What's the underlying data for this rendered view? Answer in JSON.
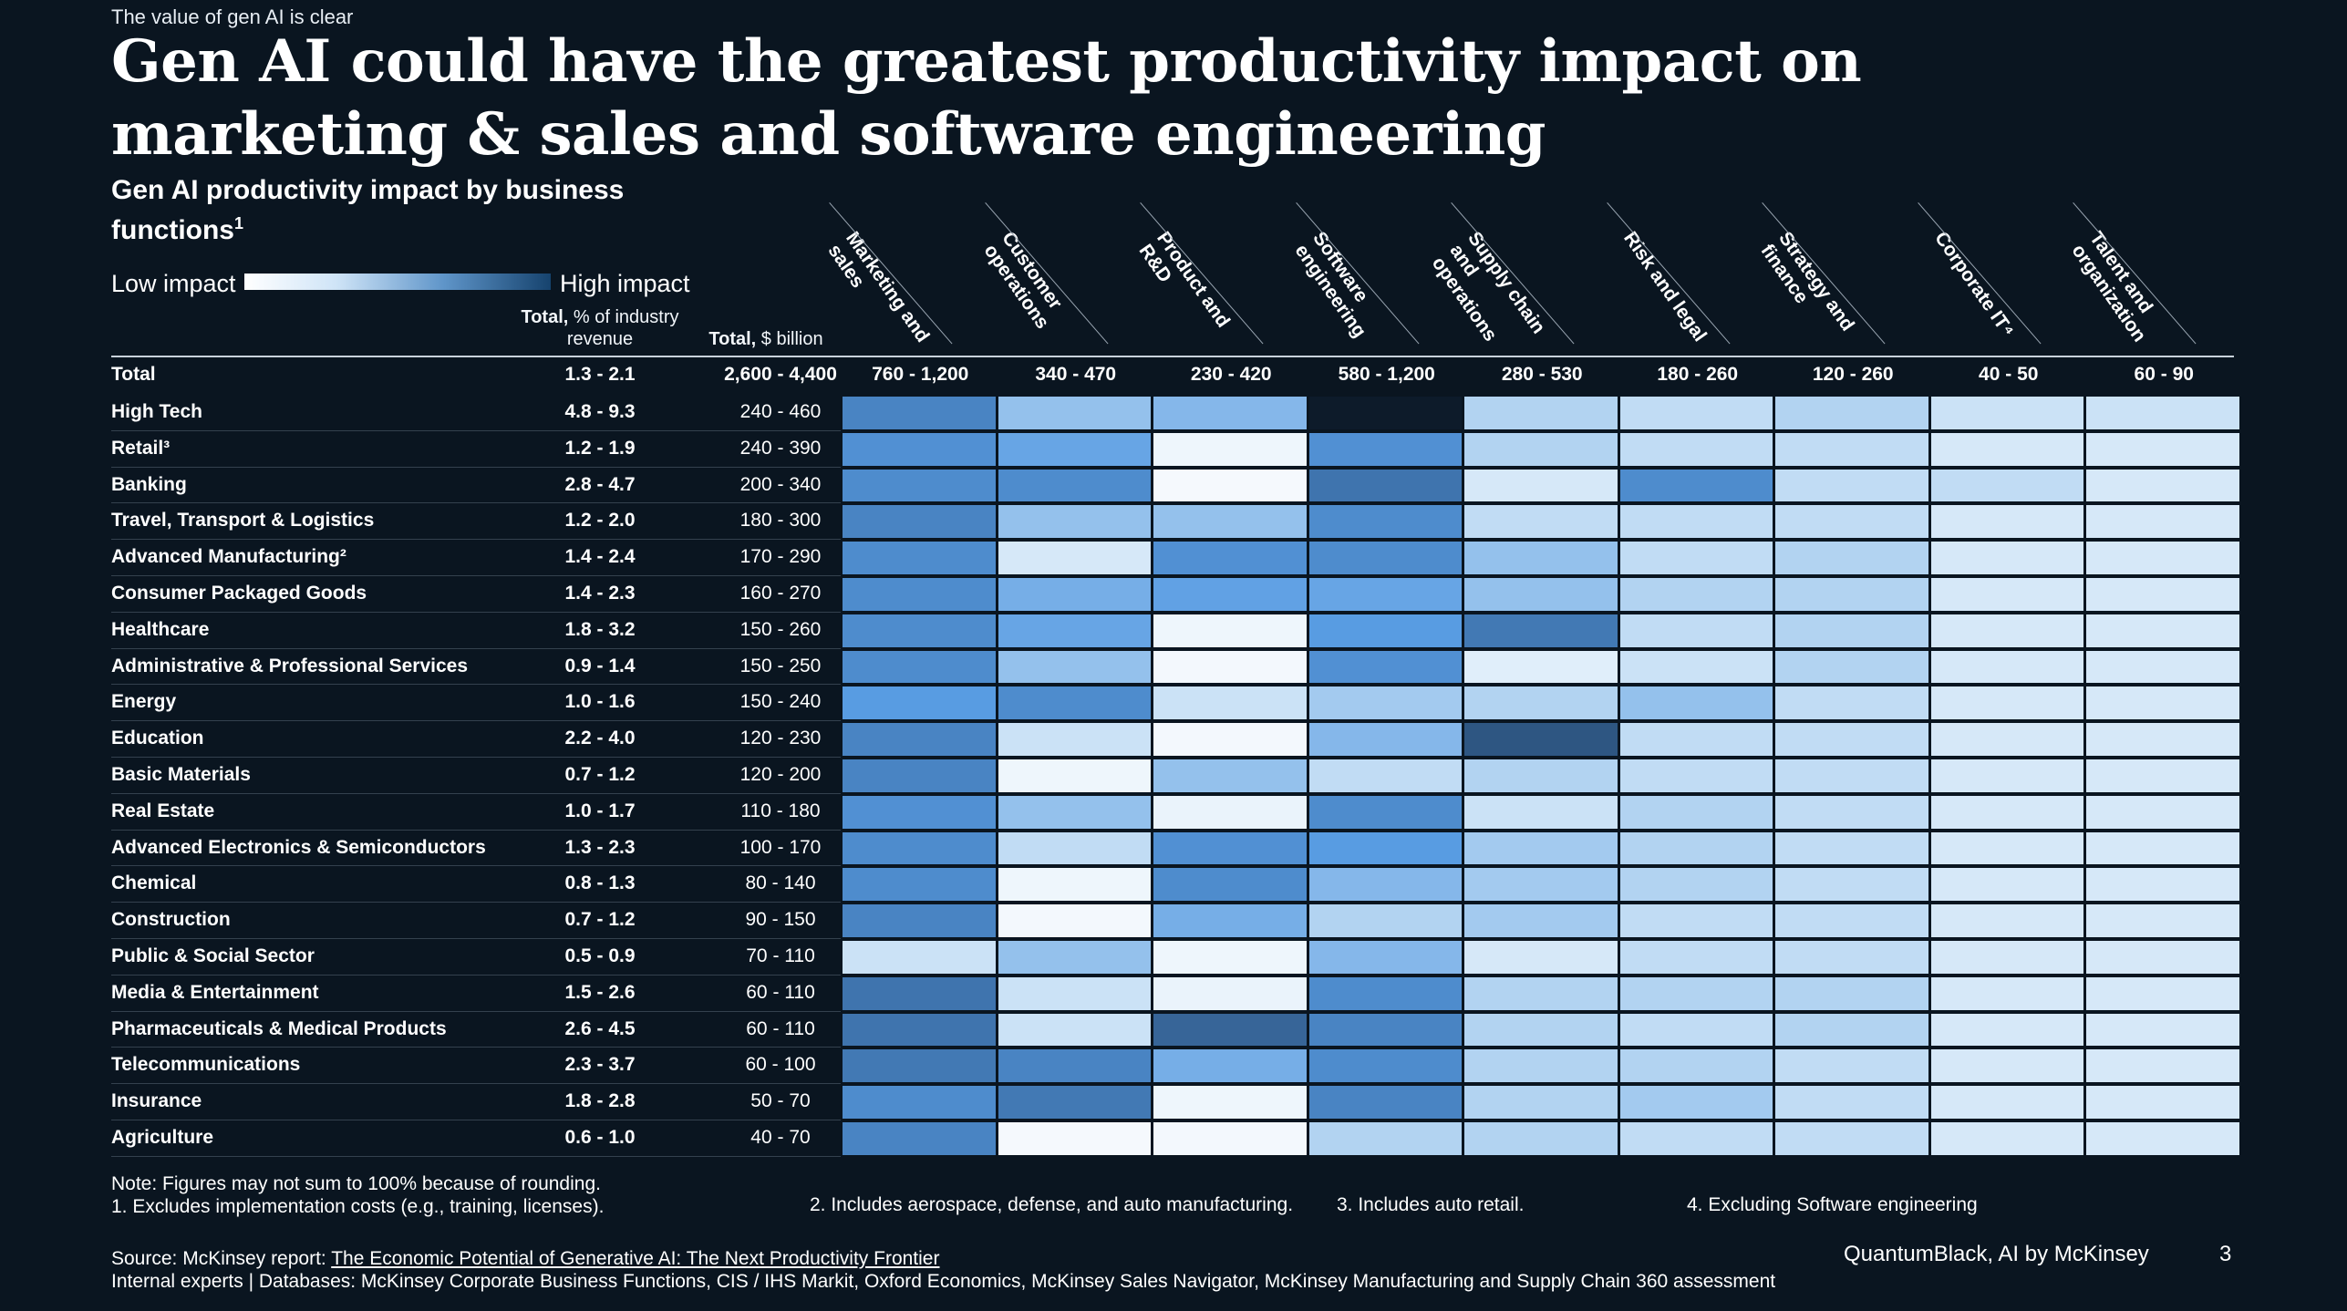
{
  "kicker": "The value of gen AI is clear",
  "headline": "Gen AI could have the greatest productivity impact on marketing & sales and software engineering",
  "subtitle": "Gen AI productivity impact by business functions",
  "subtitle_sup": "1",
  "legend": {
    "low": "Low impact",
    "high": "High impact"
  },
  "headers": {
    "revenue_bold": "Total,",
    "revenue_rest": "% of industry revenue",
    "billion_bold": "Total,",
    "billion_rest": "$ billion"
  },
  "colors": {
    "background": "#0a1520",
    "low": "#ffffff",
    "high": "#0d1b2a"
  },
  "chart_data": {
    "type": "heatmap",
    "title": "Gen AI productivity impact by business functions",
    "functions": [
      {
        "label": "Marketing and sales",
        "total": "760 - 1,200"
      },
      {
        "label": "Customer operations",
        "total": "340 - 470"
      },
      {
        "label": "Product and R&D",
        "total": "230 - 420"
      },
      {
        "label": "Software engineering",
        "total": "580 - 1,200"
      },
      {
        "label": "Supply chain and operations",
        "total": "280 - 530"
      },
      {
        "label": "Risk and legal",
        "total": "180 - 260"
      },
      {
        "label": "Strategy and finance",
        "total": "120 - 260"
      },
      {
        "label": "Corporate IT⁴",
        "total": "40 - 50"
      },
      {
        "label": "Talent and organization",
        "total": "60 - 90"
      }
    ],
    "total_row": {
      "label": "Total",
      "revenue": "1.3 - 2.1",
      "billion": "2,600 - 4,400"
    },
    "rows": [
      {
        "industry": "High Tech",
        "revenue": "4.8 - 9.3",
        "billion": "240 - 460",
        "impact": [
          0.75,
          0.45,
          0.5,
          1.0,
          0.35,
          0.3,
          0.35,
          0.25,
          0.25
        ]
      },
      {
        "industry": "Retail³",
        "revenue": "1.2 - 1.9",
        "billion": "240 - 390",
        "impact": [
          0.7,
          0.6,
          0.08,
          0.7,
          0.35,
          0.3,
          0.3,
          0.2,
          0.2
        ]
      },
      {
        "industry": "Banking",
        "revenue": "2.8 - 4.7",
        "billion": "200 - 340",
        "impact": [
          0.72,
          0.72,
          0.05,
          0.82,
          0.2,
          0.72,
          0.3,
          0.3,
          0.2
        ]
      },
      {
        "industry": "Travel, Transport & Logistics",
        "revenue": "1.2 - 2.0",
        "billion": "180 - 300",
        "impact": [
          0.75,
          0.45,
          0.45,
          0.72,
          0.3,
          0.3,
          0.3,
          0.2,
          0.2
        ]
      },
      {
        "industry": "Advanced Manufacturing²",
        "revenue": "1.4 - 2.4",
        "billion": "170 - 290",
        "impact": [
          0.72,
          0.2,
          0.7,
          0.72,
          0.45,
          0.3,
          0.35,
          0.2,
          0.2
        ]
      },
      {
        "industry": "Consumer Packaged Goods",
        "revenue": "1.4 - 2.3",
        "billion": "160 - 270",
        "impact": [
          0.72,
          0.55,
          0.62,
          0.6,
          0.45,
          0.35,
          0.35,
          0.2,
          0.2
        ]
      },
      {
        "industry": "Healthcare",
        "revenue": "1.8 - 3.2",
        "billion": "150 - 260",
        "impact": [
          0.72,
          0.6,
          0.08,
          0.65,
          0.8,
          0.3,
          0.35,
          0.2,
          0.2
        ]
      },
      {
        "industry": "Administrative & Professional Services",
        "revenue": "0.9 - 1.4",
        "billion": "150 - 250",
        "impact": [
          0.72,
          0.45,
          0.06,
          0.7,
          0.15,
          0.25,
          0.35,
          0.2,
          0.2
        ]
      },
      {
        "industry": "Energy",
        "revenue": "1.0 - 1.6",
        "billion": "150 - 240",
        "impact": [
          0.65,
          0.72,
          0.25,
          0.4,
          0.35,
          0.45,
          0.3,
          0.2,
          0.2
        ]
      },
      {
        "industry": "Education",
        "revenue": "2.2 - 4.0",
        "billion": "120 - 230",
        "impact": [
          0.75,
          0.25,
          0.06,
          0.5,
          0.88,
          0.3,
          0.3,
          0.2,
          0.2
        ]
      },
      {
        "industry": "Basic Materials",
        "revenue": "0.7 - 1.2",
        "billion": "120 - 200",
        "impact": [
          0.75,
          0.08,
          0.45,
          0.3,
          0.35,
          0.3,
          0.3,
          0.2,
          0.2
        ]
      },
      {
        "industry": "Real Estate",
        "revenue": "1.0 - 1.7",
        "billion": "110 - 180",
        "impact": [
          0.7,
          0.45,
          0.1,
          0.72,
          0.25,
          0.35,
          0.3,
          0.2,
          0.2
        ]
      },
      {
        "industry": "Advanced Electronics & Semiconductors",
        "revenue": "1.3 - 2.3",
        "billion": "100 - 170",
        "impact": [
          0.72,
          0.3,
          0.7,
          0.65,
          0.4,
          0.35,
          0.3,
          0.2,
          0.2
        ]
      },
      {
        "industry": "Chemical",
        "revenue": "0.8 - 1.3",
        "billion": "80 - 140",
        "impact": [
          0.72,
          0.08,
          0.72,
          0.5,
          0.4,
          0.35,
          0.3,
          0.2,
          0.2
        ]
      },
      {
        "industry": "Construction",
        "revenue": "0.7 - 1.2",
        "billion": "90 - 150",
        "impact": [
          0.75,
          0.06,
          0.55,
          0.35,
          0.4,
          0.3,
          0.3,
          0.2,
          0.2
        ]
      },
      {
        "industry": "Public & Social Sector",
        "revenue": "0.5 - 0.9",
        "billion": "70 - 110",
        "impact": [
          0.25,
          0.45,
          0.08,
          0.5,
          0.2,
          0.3,
          0.3,
          0.2,
          0.2
        ]
      },
      {
        "industry": "Media & Entertainment",
        "revenue": "1.5 - 2.6",
        "billion": "60 - 110",
        "impact": [
          0.82,
          0.25,
          0.1,
          0.72,
          0.35,
          0.35,
          0.35,
          0.2,
          0.2
        ]
      },
      {
        "industry": "Pharmaceuticals & Medical Products",
        "revenue": "2.6 - 4.5",
        "billion": "60 - 110",
        "impact": [
          0.82,
          0.25,
          0.85,
          0.75,
          0.35,
          0.3,
          0.35,
          0.2,
          0.2
        ]
      },
      {
        "industry": "Telecommunications",
        "revenue": "2.3 - 3.7",
        "billion": "60 - 100",
        "impact": [
          0.8,
          0.75,
          0.55,
          0.72,
          0.35,
          0.35,
          0.3,
          0.2,
          0.2
        ]
      },
      {
        "industry": "Insurance",
        "revenue": "1.8 - 2.8",
        "billion": "50 - 70",
        "impact": [
          0.72,
          0.8,
          0.08,
          0.75,
          0.35,
          0.4,
          0.3,
          0.2,
          0.2
        ]
      },
      {
        "industry": "Agriculture",
        "revenue": "0.6 - 1.0",
        "billion": "40 - 70",
        "impact": [
          0.75,
          0.05,
          0.06,
          0.35,
          0.35,
          0.3,
          0.3,
          0.2,
          0.2
        ]
      }
    ]
  },
  "notes": {
    "note": "Note: Figures may not sum to 100% because of rounding.",
    "fn1": "1.    Excludes implementation costs (e.g., training, licenses).",
    "fn2": "2. Includes aerospace, defense, and auto manufacturing.",
    "fn3": "3. Includes auto retail.",
    "fn4": "4. Excluding Software engineering"
  },
  "source": {
    "prefix": "Source: McKinsey report: ",
    "link": "The Economic Potential of Generative AI: The Next Productivity Frontier",
    "line2": "Internal experts | Databases: McKinsey Corporate Business Functions, CIS / IHS Markit, Oxford Economics, McKinsey Sales Navigator, McKinsey Manufacturing and Supply Chain 360 assessment"
  },
  "brand": "QuantumBlack, AI by McKinsey",
  "page_number": "3"
}
